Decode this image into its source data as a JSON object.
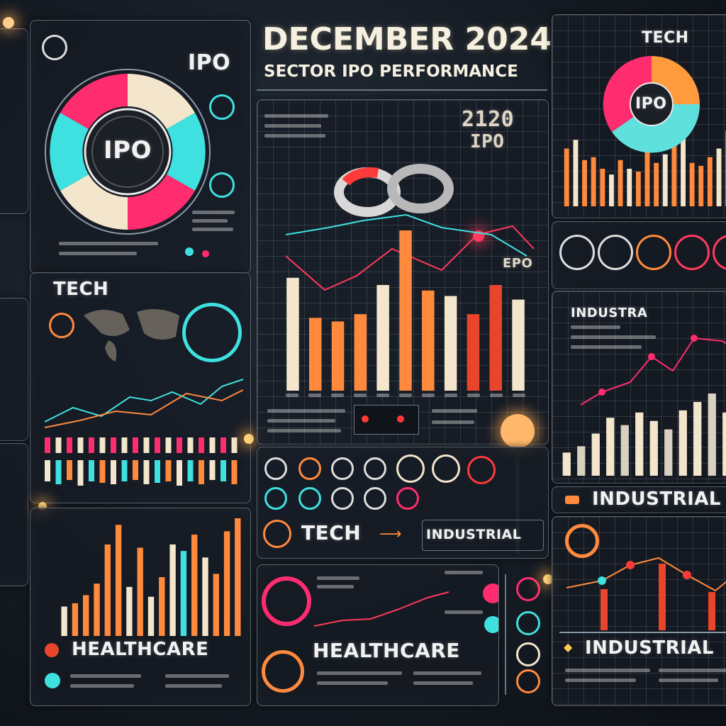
{
  "header": {
    "title": "DECEMBER 2024",
    "subtitle": "SECTOR IPO PERFORMANCE"
  },
  "labels": {
    "ipo_main": "IPO",
    "ipo_corner": "IPO",
    "ipo_pie": "IPO",
    "tech_left": "TECH",
    "tech_top_right": "TECH",
    "tech_bottom": "TECH",
    "industrial_mid": "INDUSTRIAL",
    "industrial_right": "INDUSTRIAL",
    "industrial_bottom_right": "INDUSTRIAL",
    "industra": "INDUSTRA",
    "healthcare_left": "HEALTHCARE",
    "healthcare_mid": "HEALTHCARE",
    "big_num": "2120",
    "big_ipo": "IPO",
    "epo": "EPO"
  },
  "colors": {
    "pink": "#ff2d6f",
    "cyan": "#3fe0e0",
    "orange": "#ff8a3d",
    "cream": "#f3e6cc",
    "red": "#e8452c"
  },
  "chart_data": [
    {
      "type": "bar",
      "panel": "center-main",
      "values": [
        62,
        40,
        38,
        42,
        58,
        88,
        55,
        52,
        42,
        58,
        50
      ]
    },
    {
      "type": "bar",
      "panel": "healthcare-left",
      "values": [
        18,
        20,
        25,
        32,
        56,
        68,
        30,
        54,
        24,
        36,
        56,
        52,
        62,
        48,
        38,
        64,
        72
      ]
    },
    {
      "type": "bar",
      "panel": "tech-top-right",
      "values": [
        40,
        46,
        32,
        34,
        26,
        22,
        32,
        26,
        24,
        38,
        30,
        36,
        44,
        50,
        30,
        28,
        34,
        40,
        52
      ]
    },
    {
      "type": "bar",
      "panel": "industrial-right",
      "values": [
        22,
        28,
        40,
        55,
        48,
        60,
        52,
        44,
        62,
        70,
        78,
        60
      ]
    }
  ]
}
